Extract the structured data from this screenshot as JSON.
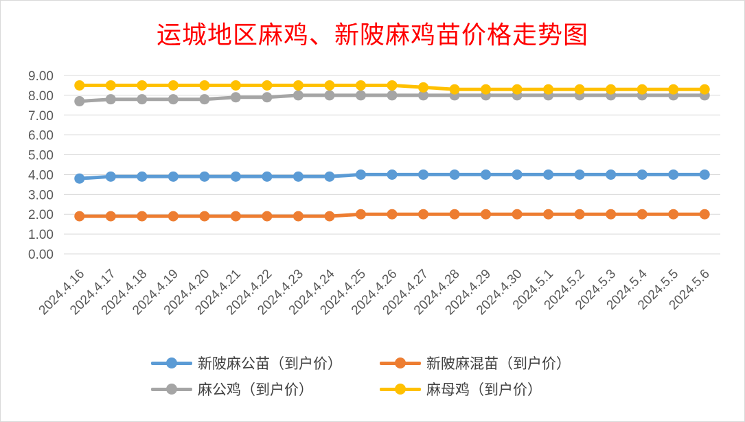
{
  "chart_data": {
    "type": "line",
    "title": "运城地区麻鸡、新陂麻鸡苗价格走势图",
    "xlabel": "",
    "ylabel": "",
    "ylim": [
      0,
      9
    ],
    "yticks": [
      "0.00",
      "1.00",
      "2.00",
      "3.00",
      "4.00",
      "5.00",
      "6.00",
      "7.00",
      "8.00",
      "9.00"
    ],
    "grid": true,
    "legend_position": "bottom",
    "categories": [
      "2024.4.16",
      "2024.4.17",
      "2024.4.18",
      "2024.4.19",
      "2024.4.20",
      "2024.4.21",
      "2024.4.22",
      "2024.4.23",
      "2024.4.24",
      "2024.4.25",
      "2024.4.26",
      "2024.4.27",
      "2024.4.28",
      "2024.4.29",
      "2024.4.30",
      "2024.5.1",
      "2024.5.2",
      "2024.5.3",
      "2024.5.4",
      "2024.5.5",
      "2024.5.6"
    ],
    "series": [
      {
        "name": "新陂麻公苗（到户价）",
        "color": "#5b9bd5",
        "values": [
          3.8,
          3.9,
          3.9,
          3.9,
          3.9,
          3.9,
          3.9,
          3.9,
          3.9,
          4.0,
          4.0,
          4.0,
          4.0,
          4.0,
          4.0,
          4.0,
          4.0,
          4.0,
          4.0,
          4.0,
          4.0
        ]
      },
      {
        "name": "新陂麻混苗（到户价）",
        "color": "#ed7d31",
        "values": [
          1.9,
          1.9,
          1.9,
          1.9,
          1.9,
          1.9,
          1.9,
          1.9,
          1.9,
          2.0,
          2.0,
          2.0,
          2.0,
          2.0,
          2.0,
          2.0,
          2.0,
          2.0,
          2.0,
          2.0,
          2.0
        ]
      },
      {
        "name": "麻公鸡（到户价）",
        "color": "#a5a5a5",
        "values": [
          7.7,
          7.8,
          7.8,
          7.8,
          7.8,
          7.9,
          7.9,
          8.0,
          8.0,
          8.0,
          8.0,
          8.0,
          8.0,
          8.0,
          8.0,
          8.0,
          8.0,
          8.0,
          8.0,
          8.0,
          8.0
        ]
      },
      {
        "name": "麻母鸡（到户价）",
        "color": "#ffc000",
        "values": [
          8.5,
          8.5,
          8.5,
          8.5,
          8.5,
          8.5,
          8.5,
          8.5,
          8.5,
          8.5,
          8.5,
          8.4,
          8.3,
          8.3,
          8.3,
          8.3,
          8.3,
          8.3,
          8.3,
          8.3,
          8.3
        ]
      }
    ]
  }
}
